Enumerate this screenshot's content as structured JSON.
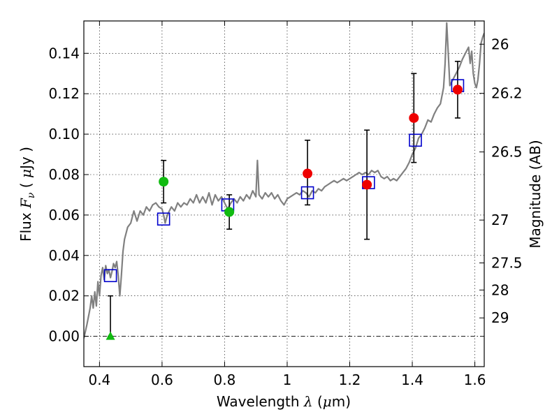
{
  "chart_data": {
    "type": "scatter",
    "xlabel_parts": [
      "Wavelength  ",
      "λ",
      " (",
      "μ",
      "m)"
    ],
    "ylabel_parts": [
      "Flux  ",
      "F",
      "ν",
      "  ( ",
      "μ",
      "Jy )"
    ],
    "y2label": "Magnitude (AB)",
    "xlim": [
      0.35,
      1.63
    ],
    "ylim": [
      -0.015,
      0.156
    ],
    "x_ticks": [
      0.4,
      0.6,
      0.8,
      1.0,
      1.2,
      1.4,
      1.6
    ],
    "x_tick_labels": [
      "0.4",
      "0.6",
      "0.8",
      "1",
      "1.2",
      "1.4",
      "1.6"
    ],
    "y_ticks": [
      0.0,
      0.02,
      0.04,
      0.06,
      0.08,
      0.1,
      0.12,
      0.14
    ],
    "y_tick_labels": [
      "0.00",
      "0.02",
      "0.04",
      "0.06",
      "0.08",
      "0.10",
      "0.12",
      "0.14"
    ],
    "y2_ticks": [
      {
        "label": "26",
        "flux": 0.1445
      },
      {
        "label": "26.2",
        "flux": 0.1202
      },
      {
        "label": "26.5",
        "flux": 0.0912
      },
      {
        "label": "27",
        "flux": 0.0575
      },
      {
        "label": "27.5",
        "flux": 0.0363
      },
      {
        "label": "28",
        "flux": 0.0229
      },
      {
        "label": "29",
        "flux": 0.0091
      }
    ],
    "grid": true,
    "zero_line": true,
    "colors": {
      "template": "#808080",
      "model": "#0000cc",
      "red_points": "#ee0000",
      "green_points": "#11bb11",
      "errorbar": "#000000"
    },
    "series": [
      {
        "kind": "template-line",
        "points": [
          [
            0.35,
            -0.001
          ],
          [
            0.36,
            0.006
          ],
          [
            0.37,
            0.014
          ],
          [
            0.375,
            0.02
          ],
          [
            0.38,
            0.014
          ],
          [
            0.385,
            0.022
          ],
          [
            0.39,
            0.015
          ],
          [
            0.395,
            0.027
          ],
          [
            0.4,
            0.02
          ],
          [
            0.405,
            0.03
          ],
          [
            0.41,
            0.034
          ],
          [
            0.415,
            0.028
          ],
          [
            0.42,
            0.035
          ],
          [
            0.425,
            0.031
          ],
          [
            0.43,
            0.033
          ],
          [
            0.435,
            0.029
          ],
          [
            0.44,
            0.032
          ],
          [
            0.445,
            0.036
          ],
          [
            0.45,
            0.034
          ],
          [
            0.455,
            0.037
          ],
          [
            0.46,
            0.03
          ],
          [
            0.465,
            0.02
          ],
          [
            0.47,
            0.03
          ],
          [
            0.475,
            0.042
          ],
          [
            0.48,
            0.048
          ],
          [
            0.49,
            0.054
          ],
          [
            0.5,
            0.056
          ],
          [
            0.51,
            0.062
          ],
          [
            0.52,
            0.057
          ],
          [
            0.53,
            0.062
          ],
          [
            0.54,
            0.06
          ],
          [
            0.55,
            0.064
          ],
          [
            0.56,
            0.062
          ],
          [
            0.57,
            0.065
          ],
          [
            0.58,
            0.066
          ],
          [
            0.59,
            0.064
          ],
          [
            0.6,
            0.063
          ],
          [
            0.605,
            0.06
          ],
          [
            0.61,
            0.056
          ],
          [
            0.615,
            0.059
          ],
          [
            0.62,
            0.061
          ],
          [
            0.63,
            0.064
          ],
          [
            0.64,
            0.062
          ],
          [
            0.65,
            0.066
          ],
          [
            0.66,
            0.064
          ],
          [
            0.67,
            0.066
          ],
          [
            0.68,
            0.065
          ],
          [
            0.69,
            0.068
          ],
          [
            0.7,
            0.066
          ],
          [
            0.71,
            0.07
          ],
          [
            0.72,
            0.066
          ],
          [
            0.73,
            0.069
          ],
          [
            0.74,
            0.066
          ],
          [
            0.75,
            0.071
          ],
          [
            0.76,
            0.065
          ],
          [
            0.77,
            0.07
          ],
          [
            0.78,
            0.067
          ],
          [
            0.79,
            0.069
          ],
          [
            0.8,
            0.066
          ],
          [
            0.81,
            0.063
          ],
          [
            0.82,
            0.066
          ],
          [
            0.83,
            0.068
          ],
          [
            0.84,
            0.066
          ],
          [
            0.85,
            0.069
          ],
          [
            0.86,
            0.067
          ],
          [
            0.87,
            0.07
          ],
          [
            0.88,
            0.068
          ],
          [
            0.89,
            0.072
          ],
          [
            0.9,
            0.069
          ],
          [
            0.905,
            0.087
          ],
          [
            0.91,
            0.07
          ],
          [
            0.92,
            0.068
          ],
          [
            0.93,
            0.071
          ],
          [
            0.94,
            0.069
          ],
          [
            0.95,
            0.071
          ],
          [
            0.96,
            0.068
          ],
          [
            0.97,
            0.07
          ],
          [
            0.98,
            0.067
          ],
          [
            0.99,
            0.065
          ],
          [
            1.0,
            0.068
          ],
          [
            1.01,
            0.069
          ],
          [
            1.02,
            0.07
          ],
          [
            1.03,
            0.071
          ],
          [
            1.04,
            0.07
          ],
          [
            1.05,
            0.072
          ],
          [
            1.06,
            0.071
          ],
          [
            1.07,
            0.069
          ],
          [
            1.08,
            0.072
          ],
          [
            1.09,
            0.071
          ],
          [
            1.1,
            0.073
          ],
          [
            1.11,
            0.072
          ],
          [
            1.12,
            0.074
          ],
          [
            1.13,
            0.075
          ],
          [
            1.14,
            0.076
          ],
          [
            1.15,
            0.077
          ],
          [
            1.16,
            0.076
          ],
          [
            1.17,
            0.077
          ],
          [
            1.18,
            0.078
          ],
          [
            1.19,
            0.077
          ],
          [
            1.2,
            0.078
          ],
          [
            1.21,
            0.079
          ],
          [
            1.22,
            0.08
          ],
          [
            1.23,
            0.081
          ],
          [
            1.24,
            0.08
          ],
          [
            1.25,
            0.081
          ],
          [
            1.26,
            0.08
          ],
          [
            1.27,
            0.082
          ],
          [
            1.28,
            0.081
          ],
          [
            1.29,
            0.082
          ],
          [
            1.3,
            0.079
          ],
          [
            1.31,
            0.078
          ],
          [
            1.32,
            0.079
          ],
          [
            1.33,
            0.077
          ],
          [
            1.34,
            0.078
          ],
          [
            1.35,
            0.077
          ],
          [
            1.36,
            0.079
          ],
          [
            1.37,
            0.081
          ],
          [
            1.38,
            0.083
          ],
          [
            1.39,
            0.086
          ],
          [
            1.4,
            0.09
          ],
          [
            1.41,
            0.093
          ],
          [
            1.42,
            0.098
          ],
          [
            1.43,
            0.1
          ],
          [
            1.44,
            0.103
          ],
          [
            1.45,
            0.107
          ],
          [
            1.46,
            0.106
          ],
          [
            1.47,
            0.11
          ],
          [
            1.48,
            0.113
          ],
          [
            1.49,
            0.115
          ],
          [
            1.5,
            0.123
          ],
          [
            1.505,
            0.135
          ],
          [
            1.51,
            0.155
          ],
          [
            1.515,
            0.14
          ],
          [
            1.52,
            0.124
          ],
          [
            1.53,
            0.127
          ],
          [
            1.54,
            0.13
          ],
          [
            1.55,
            0.133
          ],
          [
            1.56,
            0.137
          ],
          [
            1.57,
            0.14
          ],
          [
            1.58,
            0.143
          ],
          [
            1.585,
            0.135
          ],
          [
            1.59,
            0.141
          ],
          [
            1.595,
            0.13
          ],
          [
            1.6,
            0.125
          ],
          [
            1.605,
            0.123
          ],
          [
            1.61,
            0.127
          ],
          [
            1.615,
            0.135
          ],
          [
            1.62,
            0.145
          ],
          [
            1.625,
            0.148
          ],
          [
            1.63,
            0.15
          ]
        ]
      },
      {
        "kind": "model-squares",
        "points": [
          [
            0.435,
            0.03
          ],
          [
            0.605,
            0.058
          ],
          [
            0.81,
            0.065
          ],
          [
            1.065,
            0.071
          ],
          [
            1.26,
            0.076
          ],
          [
            1.41,
            0.097
          ],
          [
            1.545,
            0.124
          ]
        ]
      },
      {
        "kind": "red-circles-errorbars",
        "points": [
          {
            "x": 1.065,
            "y": 0.0805,
            "lo": 0.065,
            "hi": 0.097
          },
          {
            "x": 1.255,
            "y": 0.075,
            "lo": 0.048,
            "hi": 0.102
          },
          {
            "x": 1.405,
            "y": 0.108,
            "lo": 0.086,
            "hi": 0.13
          },
          {
            "x": 1.545,
            "y": 0.122,
            "lo": 0.108,
            "hi": 0.136
          }
        ]
      },
      {
        "kind": "green-circles-errorbars",
        "points": [
          {
            "x": 0.605,
            "y": 0.0765,
            "lo": 0.066,
            "hi": 0.087
          },
          {
            "x": 0.815,
            "y": 0.0615,
            "lo": 0.053,
            "hi": 0.07
          }
        ]
      },
      {
        "kind": "green-triangle-upper-limit",
        "points": [
          {
            "x": 0.435,
            "y": 0.0,
            "lo": 0.0,
            "hi": 0.02
          }
        ]
      }
    ]
  }
}
